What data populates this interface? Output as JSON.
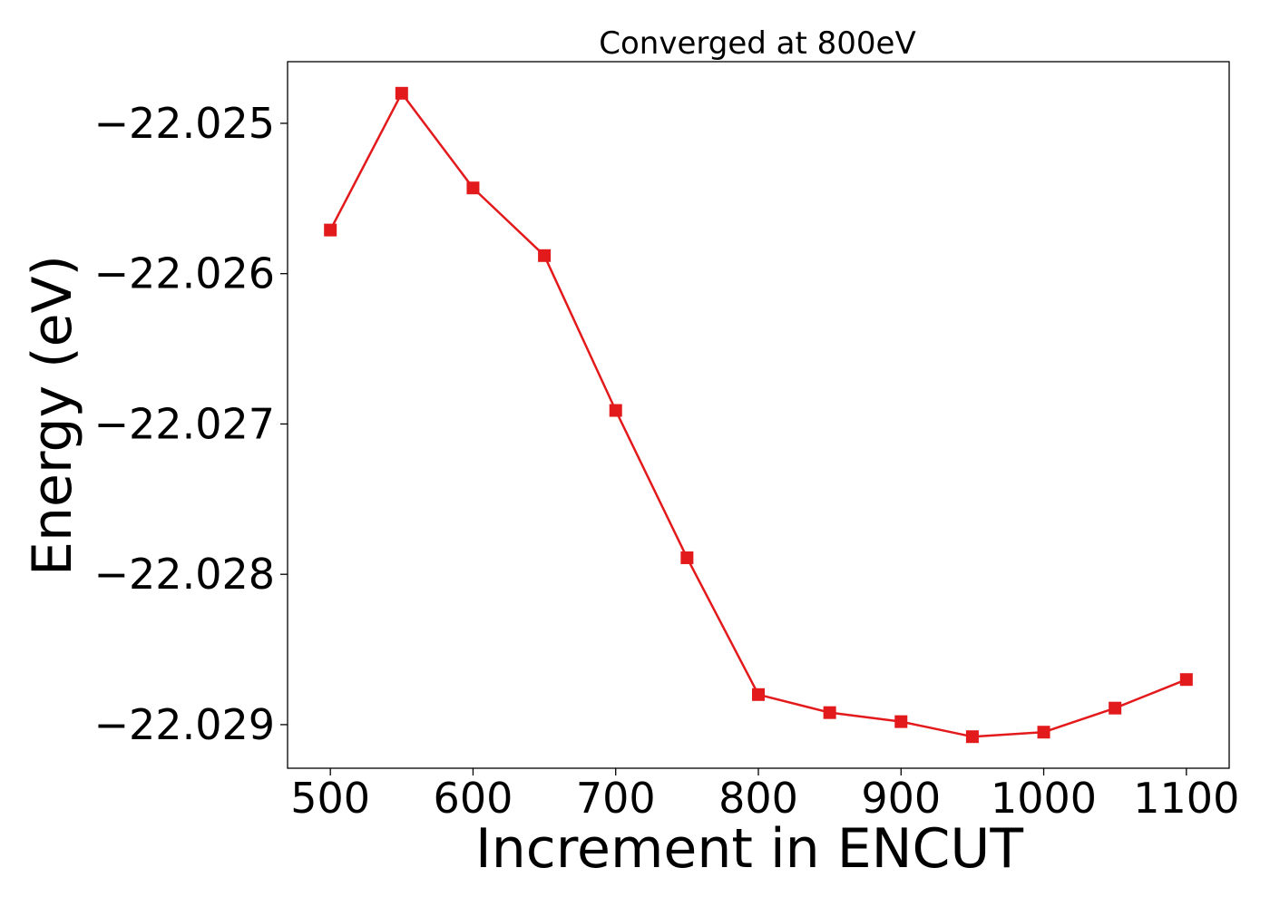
{
  "chart_data": {
    "type": "line",
    "title": "Converged at 800eV",
    "xlabel": "Increment in ENCUT",
    "ylabel": "Energy (eV)",
    "x": [
      500,
      550,
      600,
      650,
      700,
      750,
      800,
      850,
      900,
      950,
      1000,
      1050,
      1100
    ],
    "series": [
      {
        "values": [
          -22.02571,
          -22.0248,
          -22.02543,
          -22.02588,
          -22.02691,
          -22.02789,
          -22.0288,
          -22.02892,
          -22.02898,
          -22.02908,
          -22.02905,
          -22.02889,
          -22.0287
        ],
        "color": "#e31a1c",
        "marker": "square"
      }
    ],
    "xlim": [
      470,
      1130
    ],
    "ylim": [
      -22.02929,
      -22.02459
    ],
    "xticks": [
      500,
      600,
      700,
      800,
      900,
      1000,
      1100
    ],
    "xtick_labels": [
      "500",
      "600",
      "700",
      "800",
      "900",
      "1000",
      "1100"
    ],
    "yticks": [
      -22.025,
      -22.026,
      -22.027,
      -22.028,
      -22.029
    ],
    "ytick_labels": [
      "−22.025",
      "−22.026",
      "−22.027",
      "−22.028",
      "−22.029"
    ],
    "grid": false,
    "legend": false
  }
}
